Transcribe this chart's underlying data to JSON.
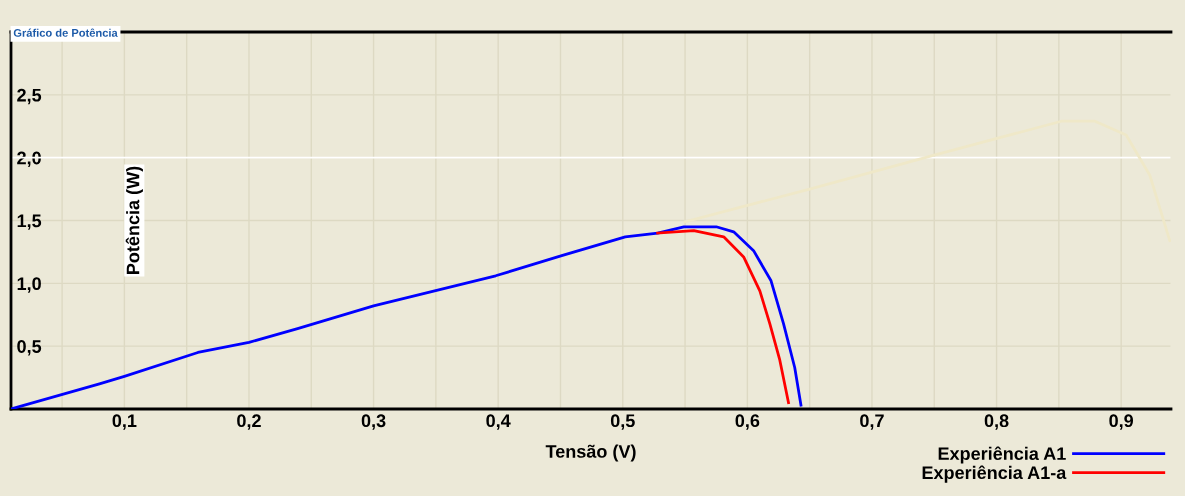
{
  "chart_data": {
    "type": "line",
    "title": "Gráfico de Potência",
    "xlabel": "Tensão (V)",
    "ylabel": "Potência (W)",
    "series": [
      {
        "name": "Experiência A1",
        "color": "#0000ff",
        "x": [
          0.009,
          0.08,
          0.1,
          0.159,
          0.2,
          0.239,
          0.3,
          0.398,
          0.451,
          0.502,
          0.528,
          0.549,
          0.575,
          0.589,
          0.605,
          0.619,
          0.629,
          0.638,
          0.643
        ],
        "values": [
          0,
          0.2,
          0.26,
          0.45,
          0.53,
          0.64,
          0.82,
          1.06,
          1.22,
          1.37,
          1.4,
          1.45,
          1.45,
          1.41,
          1.26,
          1.02,
          0.68,
          0.33,
          0.03
        ]
      },
      {
        "name": "Experiência A1-a",
        "color": "#ff0000",
        "x": [
          0.528,
          0.557,
          0.581,
          0.597,
          0.61,
          0.618,
          0.626,
          0.633
        ],
        "values": [
          1.4,
          1.42,
          1.37,
          1.21,
          0.94,
          0.68,
          0.39,
          0.05
        ]
      },
      {
        "color": "#efe8c8",
        "x": [
          0.55,
          0.65,
          0.75,
          0.852,
          0.879,
          0.904,
          0.923,
          0.939
        ],
        "values": [
          1.49,
          1.75,
          2.02,
          2.29,
          2.29,
          2.18,
          1.86,
          1.34
        ]
      }
    ],
    "xlim": [
      0.009,
      0.94
    ],
    "xticks": [
      {
        "value": 0.05,
        "label": null
      },
      {
        "value": 0.1,
        "label": "0,1"
      },
      {
        "value": 0.15,
        "label": null
      },
      {
        "value": 0.2,
        "label": "0,2"
      },
      {
        "value": 0.25,
        "label": null
      },
      {
        "value": 0.3,
        "label": "0,3"
      },
      {
        "value": 0.35,
        "label": null
      },
      {
        "value": 0.4,
        "label": "0,4"
      },
      {
        "value": 0.45,
        "label": null
      },
      {
        "value": 0.5,
        "label": "0,5"
      },
      {
        "value": 0.55,
        "label": null
      },
      {
        "value": 0.6,
        "label": "0,6"
      },
      {
        "value": 0.65,
        "label": null
      },
      {
        "value": 0.7,
        "label": "0,7"
      },
      {
        "value": 0.75,
        "label": null
      },
      {
        "value": 0.8,
        "label": "0,8"
      },
      {
        "value": 0.85,
        "label": null
      },
      {
        "value": 0.9,
        "label": "0,9"
      }
    ],
    "ylim": [
      0,
      3
    ],
    "yticks": [
      {
        "value": 0.5,
        "label": "0,5"
      },
      {
        "value": 1.0,
        "label": "1,0"
      },
      {
        "value": 1.5,
        "label": "1,5"
      },
      {
        "value": 2.0,
        "label": "2,0"
      },
      {
        "value": 2.5,
        "label": "2,5"
      }
    ],
    "ref_lines": [
      {
        "axis": "y",
        "value": 2.0,
        "color": "#ffffff"
      }
    ],
    "grid": true,
    "legend": "bottom right",
    "marker": "none",
    "line_style": "solid"
  }
}
